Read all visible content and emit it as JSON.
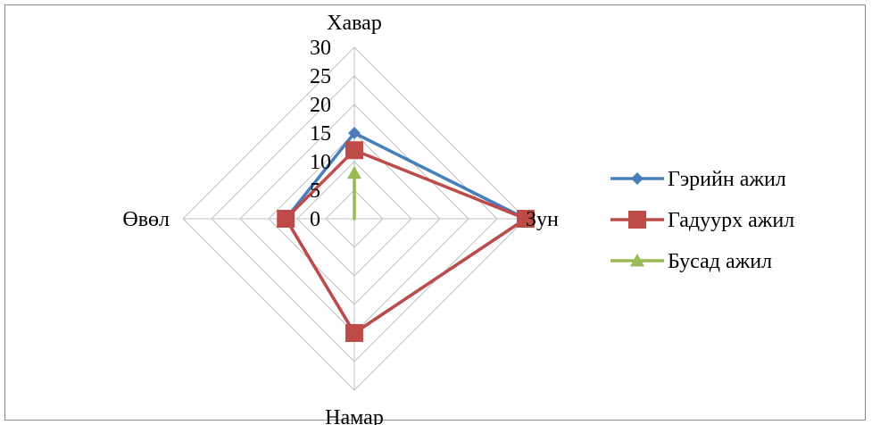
{
  "chart_data": {
    "type": "radar",
    "axes": [
      "Хавар",
      "Зун",
      "Намар",
      "Өвөл"
    ],
    "ticks": [
      0,
      5,
      10,
      15,
      20,
      25,
      30
    ],
    "rmax": 30,
    "series": [
      {
        "name": "Гэрийн ажил",
        "values": [
          15,
          30,
          20,
          12
        ],
        "color": "#4a7ebb",
        "marker": "diamond"
      },
      {
        "name": "Гадуурх ажил",
        "values": [
          12,
          30,
          20,
          12
        ],
        "color": "#be4b48",
        "marker": "square"
      },
      {
        "name": "Бусад ажил",
        "values": [
          8,
          0,
          0,
          0
        ],
        "color": "#98b954",
        "marker": "triangle"
      }
    ],
    "legend_position": "right",
    "grid": true
  }
}
